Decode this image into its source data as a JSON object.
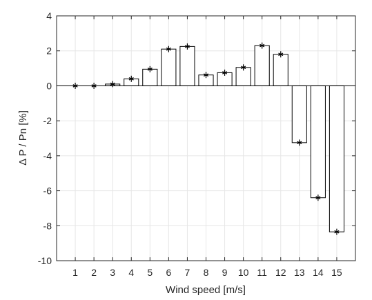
{
  "chart_data": {
    "type": "bar",
    "title": "",
    "xlabel": "Wind speed [m/s]",
    "ylabel": "Δ P / Pn [%]",
    "categories": [
      1,
      2,
      3,
      4,
      5,
      6,
      7,
      8,
      9,
      10,
      11,
      12,
      13,
      14,
      15
    ],
    "series": [
      {
        "values": [
          0.0,
          0.0,
          0.1,
          0.4,
          0.95,
          2.1,
          2.25,
          0.62,
          0.75,
          1.05,
          2.3,
          1.8,
          -3.25,
          -6.4,
          -8.35
        ],
        "marker": "asterisk"
      }
    ],
    "ylim": [
      -10,
      4
    ],
    "yticks": [
      4,
      2,
      0,
      -2,
      -4,
      -6,
      -8,
      -10
    ],
    "grid": true,
    "legend": "none",
    "colors": {
      "bar_fill": "#ffffff",
      "bar_stroke": "#000000",
      "grid": "#e6e6e6",
      "axis": "#262626",
      "zero_line": "#000000"
    }
  }
}
